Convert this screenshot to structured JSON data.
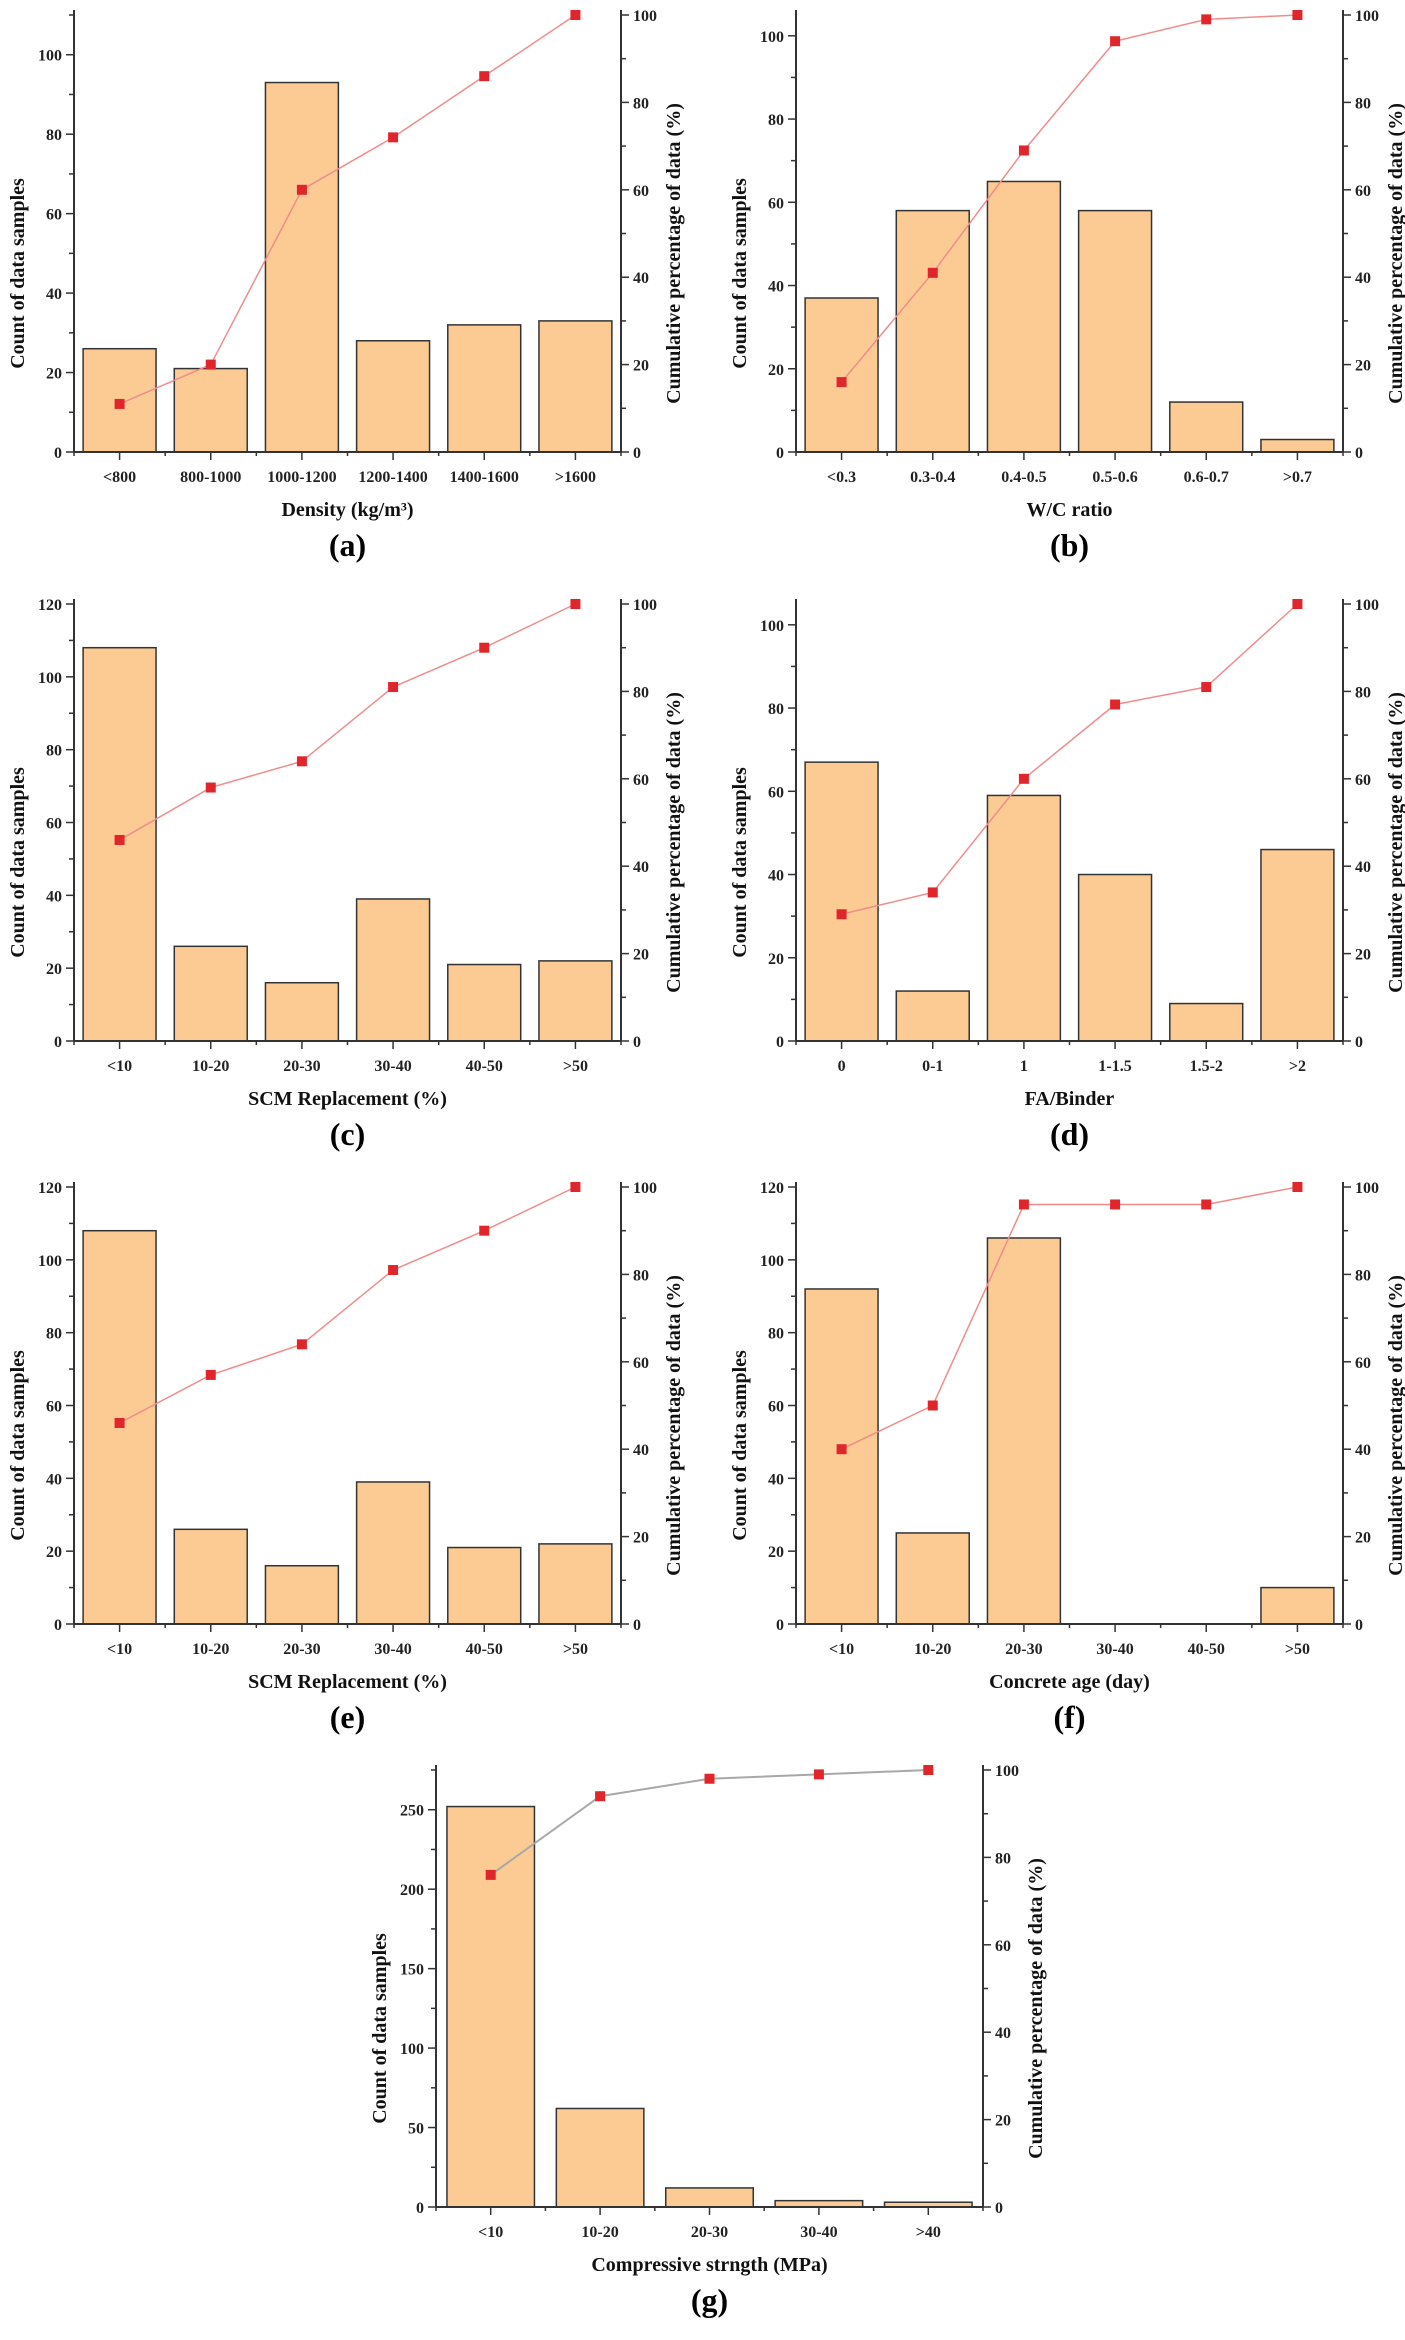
{
  "colors": {
    "bar_fill": "#FBCB93",
    "bar_stroke": "#333333",
    "line": "#F08C8C",
    "line_g": "#A8A8A8",
    "marker": "#E0262A"
  },
  "chart_data": [
    {
      "id": "a",
      "type": "bar+line",
      "panel_label": "(a)",
      "xlabel": "Density (kg/m³)",
      "ylabel": "Count of data samples",
      "y2label": "Cumulative percentage of data (%)",
      "categories": [
        "<800",
        "800-1000",
        "1000-1200",
        "1200-1400",
        "1400-1600",
        ">1600"
      ],
      "counts": [
        26,
        21,
        93,
        28,
        32,
        33
      ],
      "cumulative": [
        11,
        20,
        60,
        72,
        86,
        100
      ],
      "ylim": [
        0,
        110
      ],
      "yticks": [
        0,
        20,
        40,
        60,
        80,
        100
      ],
      "y2lim": [
        0,
        100
      ],
      "y2ticks": [
        0,
        20,
        40,
        60,
        80,
        100
      ]
    },
    {
      "id": "b",
      "type": "bar+line",
      "panel_label": "(b)",
      "xlabel": "W/C ratio",
      "ylabel": "Count of data samples",
      "y2label": "Cumulative percentage of data (%)",
      "categories": [
        "<0.3",
        "0.3-0.4",
        "0.4-0.5",
        "0.5-0.6",
        "0.6-0.7",
        ">0.7"
      ],
      "counts": [
        37,
        58,
        65,
        58,
        12,
        3
      ],
      "cumulative": [
        16,
        41,
        69,
        94,
        99,
        100
      ],
      "ylim": [
        0,
        105
      ],
      "yticks": [
        0,
        20,
        40,
        60,
        80,
        100
      ],
      "y2lim": [
        0,
        100
      ],
      "y2ticks": [
        0,
        20,
        40,
        60,
        80,
        100
      ]
    },
    {
      "id": "c",
      "type": "bar+line",
      "panel_label": "(c)",
      "xlabel": "SCM Replacement (%)",
      "ylabel": "Count of data samples",
      "y2label": "Cumulative percentage of data (%)",
      "categories": [
        "<10",
        "10-20",
        "20-30",
        "30-40",
        "40-50",
        ">50"
      ],
      "counts": [
        108,
        26,
        16,
        39,
        21,
        22
      ],
      "cumulative": [
        46,
        58,
        64,
        81,
        90,
        100
      ],
      "ylim": [
        0,
        120
      ],
      "yticks": [
        0,
        20,
        40,
        60,
        80,
        100,
        120
      ],
      "y2lim": [
        0,
        100
      ],
      "y2ticks": [
        0,
        20,
        40,
        60,
        80,
        100
      ]
    },
    {
      "id": "d",
      "type": "bar+line",
      "panel_label": "(d)",
      "xlabel": "FA/Binder",
      "ylabel": "Count of data samples",
      "y2label": "Cumulative percentage of data (%)",
      "categories": [
        "0",
        "0-1",
        "1",
        "1-1.5",
        "1.5-2",
        ">2"
      ],
      "counts": [
        67,
        12,
        59,
        40,
        9,
        46
      ],
      "cumulative": [
        29,
        34,
        60,
        77,
        81,
        100
      ],
      "ylim": [
        0,
        105
      ],
      "yticks": [
        0,
        20,
        40,
        60,
        80,
        100
      ],
      "y2lim": [
        0,
        100
      ],
      "y2ticks": [
        0,
        20,
        40,
        60,
        80,
        100
      ]
    },
    {
      "id": "e",
      "type": "bar+line",
      "panel_label": "(e)",
      "xlabel": "SCM Replacement (%)",
      "ylabel": "Count of data samples",
      "y2label": "Cumulative percentage of data (%)",
      "categories": [
        "<10",
        "10-20",
        "20-30",
        "30-40",
        "40-50",
        ">50"
      ],
      "counts": [
        108,
        26,
        16,
        39,
        21,
        22
      ],
      "cumulative": [
        46,
        57,
        64,
        81,
        90,
        100
      ],
      "ylim": [
        0,
        120
      ],
      "yticks": [
        0,
        20,
        40,
        60,
        80,
        100,
        120
      ],
      "y2lim": [
        0,
        100
      ],
      "y2ticks": [
        0,
        20,
        40,
        60,
        80,
        100
      ]
    },
    {
      "id": "f",
      "type": "bar+line",
      "panel_label": "(f)",
      "xlabel": "Concrete age (day)",
      "ylabel": "Count of data samples",
      "y2label": "Cumulative percentage of data (%)",
      "categories": [
        "<10",
        "10-20",
        "20-30",
        "30-40",
        "40-50",
        ">50"
      ],
      "counts": [
        92,
        25,
        106,
        0,
        0,
        10
      ],
      "cumulative": [
        40,
        50,
        96,
        96,
        96,
        100
      ],
      "ylim": [
        0,
        120
      ],
      "yticks": [
        0,
        20,
        40,
        60,
        80,
        100,
        120
      ],
      "y2lim": [
        0,
        100
      ],
      "y2ticks": [
        0,
        20,
        40,
        60,
        80,
        100
      ]
    },
    {
      "id": "g",
      "type": "bar+line",
      "panel_label": "(g)",
      "xlabel": "Compressive strngth (MPa)",
      "ylabel": "Count of data samples",
      "y2label": "Cumulative percentage of data (%)",
      "categories": [
        "<10",
        "10-20",
        "20-30",
        "30-40",
        ">40"
      ],
      "counts": [
        252,
        62,
        12,
        4,
        3
      ],
      "cumulative": [
        76,
        94,
        98,
        99,
        100
      ],
      "ylim": [
        0,
        275
      ],
      "yticks": [
        0,
        50,
        100,
        150,
        200,
        250
      ],
      "y2lim": [
        0,
        100
      ],
      "y2ticks": [
        0,
        20,
        40,
        60,
        80,
        100
      ]
    }
  ]
}
